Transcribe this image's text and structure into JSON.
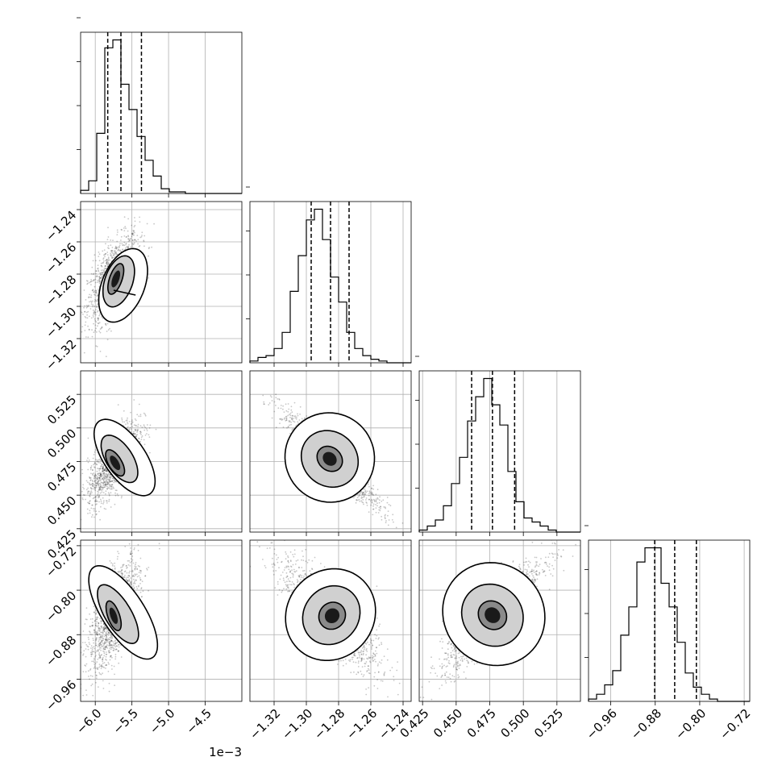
{
  "chart_data": {
    "type": "corner",
    "grid": true,
    "parameters": [
      {
        "range": [
          -6.2,
          -4.0
        ],
        "ticks": [
          -6.0,
          -5.5,
          -5.0,
          -4.5
        ],
        "tick_labels": [
          "−6.0",
          "−5.5",
          "−5.0",
          "−4.5"
        ],
        "offset_text": "1e−3",
        "quantiles": [
          -5.83,
          -5.65,
          -5.37
        ],
        "hist": {
          "edges_start": -6.2,
          "bin_width": 0.11,
          "counts": [
            2,
            8,
            38,
            92,
            97,
            69,
            53,
            36,
            21,
            11,
            3,
            1,
            1,
            0,
            0,
            0,
            0,
            0,
            0,
            0
          ]
        }
      },
      {
        "range": [
          -1.335,
          -1.235
        ],
        "ticks": [
          -1.32,
          -1.3,
          -1.28,
          -1.26,
          -1.24
        ],
        "tick_labels": [
          "−1.32",
          "−1.30",
          "−1.28",
          "−1.26",
          "−1.24"
        ],
        "quantiles": [
          -1.297,
          -1.285,
          -1.2735
        ],
        "hist": {
          "edges_start": -1.335,
          "bin_width": 0.005,
          "counts": [
            1,
            3,
            4,
            8,
            17,
            40,
            60,
            80,
            86,
            69,
            48,
            34,
            17,
            8,
            4,
            2,
            1,
            0,
            0,
            0
          ]
        }
      },
      {
        "range": [
          0.4225,
          0.5425
        ],
        "ticks": [
          0.425,
          0.45,
          0.475,
          0.5,
          0.525
        ],
        "tick_labels": [
          "0.425",
          "0.450",
          "0.475",
          "0.500",
          "0.525"
        ],
        "quantiles": [
          0.4615,
          0.477,
          0.4935
        ],
        "hist": {
          "edges_start": 0.4225,
          "bin_width": 0.006,
          "counts": [
            1,
            3,
            6,
            13,
            24,
            37,
            55,
            67,
            76,
            63,
            53,
            30,
            15,
            7,
            5,
            3,
            1,
            0,
            0,
            0
          ]
        }
      },
      {
        "range": [
          -1.0,
          -0.71
        ],
        "ticks": [
          -0.96,
          -0.88,
          -0.8,
          -0.72
        ],
        "tick_labels": [
          "−0.96",
          "−0.88",
          "−0.80",
          "−0.72"
        ],
        "quantiles": [
          -0.881,
          -0.845,
          -0.806
        ],
        "hist": {
          "edges_start": -1.0,
          "bin_width": 0.0145,
          "counts": [
            1,
            3,
            7,
            13,
            28,
            40,
            59,
            65,
            65,
            50,
            40,
            25,
            12,
            6,
            3,
            1,
            0,
            0,
            0,
            0
          ]
        }
      }
    ],
    "pairs": [
      {
        "row": 1,
        "col": 0,
        "center": [
          -5.75,
          -1.283
        ],
        "sx": 0.14,
        "sy": 0.0108,
        "rho": 0.6,
        "contours": [
          [
            -5.72,
            -1.283,
            0.085,
            0.01,
            -0.35
          ],
          [
            -5.68,
            -1.2845,
            0.19,
            0.0165,
            -0.35
          ],
          [
            -5.62,
            -1.287,
            0.29,
            0.024,
            -0.4
          ]
        ],
        "extra_line": [
          [
            -5.75,
            -1.29
          ],
          [
            -5.45,
            -1.293
          ]
        ]
      },
      {
        "row": 2,
        "col": 0,
        "center": [
          -5.75,
          0.475
        ],
        "sx": 0.14,
        "sy": 0.012,
        "rho": 0.7,
        "contours": [
          [
            -5.73,
            0.474,
            0.09,
            0.011,
            0.6
          ],
          [
            -5.67,
            0.477,
            0.18,
            0.02,
            0.65
          ],
          [
            -5.6,
            0.478,
            0.28,
            0.033,
            0.7
          ]
        ]
      },
      {
        "row": 2,
        "col": 1,
        "center": [
          -1.285,
          0.477
        ],
        "sx": 0.012,
        "sy": 0.0145,
        "rho": -0.95,
        "contours": [
          [
            -1.2855,
            0.477,
            0.0085,
            0.0085,
            -0.95
          ],
          [
            -1.2855,
            0.477,
            0.0185,
            0.02,
            -0.95
          ],
          [
            -1.2855,
            0.478,
            0.028,
            0.033,
            -0.95
          ]
        ]
      },
      {
        "row": 3,
        "col": 0,
        "center": [
          -5.75,
          -0.845
        ],
        "sx": 0.14,
        "sy": 0.04,
        "rho": 0.65,
        "contours": [
          [
            -5.75,
            -0.846,
            0.08,
            0.028,
            0.35
          ],
          [
            -5.69,
            -0.843,
            0.18,
            0.06,
            0.6
          ],
          [
            -5.62,
            -0.84,
            0.29,
            0.097,
            0.65
          ]
        ]
      },
      {
        "row": 3,
        "col": 1,
        "center": [
          -1.285,
          -0.845
        ],
        "sx": 0.012,
        "sy": 0.04,
        "rho": -0.8,
        "contours": [
          [
            -1.284,
            -0.846,
            0.008,
            0.025,
            -0.8
          ],
          [
            -1.2845,
            -0.845,
            0.017,
            0.055,
            -0.8
          ],
          [
            -1.285,
            -0.844,
            0.027,
            0.085,
            -0.8
          ]
        ]
      },
      {
        "row": 3,
        "col": 2,
        "center": [
          0.477,
          -0.845
        ],
        "sx": 0.015,
        "sy": 0.04,
        "rho": 0.9,
        "contours": [
          [
            0.477,
            -0.845,
            0.01,
            0.027,
            0.9
          ],
          [
            0.477,
            -0.845,
            0.022,
            0.058,
            0.9
          ],
          [
            0.478,
            -0.843,
            0.037,
            0.095,
            0.9
          ]
        ]
      }
    ]
  }
}
